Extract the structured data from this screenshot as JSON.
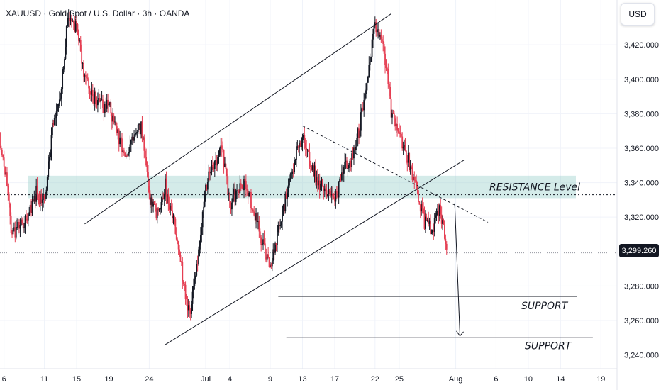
{
  "header": {
    "symbol_title": "XAUUSD · Gold Spot / U.S. Dollar · 3h · OANDA",
    "currency_button": "USD"
  },
  "chart_data": {
    "type": "candlestick",
    "symbol": "XAUUSD",
    "instrument": "Gold Spot / U.S. Dollar",
    "timeframe": "3h",
    "source": "OANDA",
    "currency": "USD",
    "last_price": "3,299.260",
    "ylim": [
      3232,
      3446
    ],
    "y_ticks": [
      {
        "v": 3420,
        "label": "3,420.000"
      },
      {
        "v": 3400,
        "label": "3,400.000"
      },
      {
        "v": 3380,
        "label": "3,380.000"
      },
      {
        "v": 3360,
        "label": "3,360.000"
      },
      {
        "v": 3340,
        "label": "3,340.000"
      },
      {
        "v": 3320,
        "label": "3,320.000"
      },
      {
        "v": 3280,
        "label": "3,280.000"
      },
      {
        "v": 3260,
        "label": "3,260.000"
      },
      {
        "v": 3240,
        "label": "3,240.000"
      }
    ],
    "x_ticks": [
      {
        "label": "6",
        "date": "2025-06-06"
      },
      {
        "label": "11",
        "date": "2025-06-11"
      },
      {
        "label": "15",
        "date": "2025-06-15"
      },
      {
        "label": "19",
        "date": "2025-06-19"
      },
      {
        "label": "24",
        "date": "2025-06-24"
      },
      {
        "label": "Jul",
        "date": "2025-07-01"
      },
      {
        "label": "4",
        "date": "2025-07-04"
      },
      {
        "label": "9",
        "date": "2025-07-09"
      },
      {
        "label": "13",
        "date": "2025-07-13"
      },
      {
        "label": "17",
        "date": "2025-07-17"
      },
      {
        "label": "22",
        "date": "2025-07-22"
      },
      {
        "label": "25",
        "date": "2025-07-25"
      },
      {
        "label": "Aug",
        "date": "2025-08-01"
      },
      {
        "label": "6",
        "date": "2025-08-06"
      },
      {
        "label": "10",
        "date": "2025-08-10"
      },
      {
        "label": "14",
        "date": "2025-08-14"
      },
      {
        "label": "19",
        "date": "2025-08-19"
      }
    ],
    "path": [
      [
        "2025-06-05",
        3375
      ],
      [
        "2025-06-06",
        3352
      ],
      [
        "2025-06-07",
        3310
      ],
      [
        "2025-06-09",
        3320
      ],
      [
        "2025-06-10",
        3335
      ],
      [
        "2025-06-11",
        3328
      ],
      [
        "2025-06-12",
        3372
      ],
      [
        "2025-06-13",
        3392
      ],
      [
        "2025-06-14",
        3438
      ],
      [
        "2025-06-15",
        3430
      ],
      [
        "2025-06-16",
        3402
      ],
      [
        "2025-06-17",
        3390
      ],
      [
        "2025-06-18",
        3384
      ],
      [
        "2025-06-19",
        3386
      ],
      [
        "2025-06-20",
        3368
      ],
      [
        "2025-06-21",
        3358
      ],
      [
        "2025-06-22",
        3365
      ],
      [
        "2025-06-23",
        3372
      ],
      [
        "2025-06-24",
        3332
      ],
      [
        "2025-06-25",
        3322
      ],
      [
        "2025-06-26",
        3338
      ],
      [
        "2025-06-27",
        3318
      ],
      [
        "2025-06-28",
        3290
      ],
      [
        "2025-06-29",
        3262
      ],
      [
        "2025-06-30",
        3295
      ],
      [
        "2025-07-01",
        3338
      ],
      [
        "2025-07-02",
        3350
      ],
      [
        "2025-07-03",
        3360
      ],
      [
        "2025-07-04",
        3328
      ],
      [
        "2025-07-05",
        3336
      ],
      [
        "2025-07-06",
        3338
      ],
      [
        "2025-07-07",
        3322
      ],
      [
        "2025-07-08",
        3306
      ],
      [
        "2025-07-09",
        3290
      ],
      [
        "2025-07-10",
        3314
      ],
      [
        "2025-07-11",
        3332
      ],
      [
        "2025-07-12",
        3352
      ],
      [
        "2025-07-13",
        3368
      ],
      [
        "2025-07-14",
        3352
      ],
      [
        "2025-07-15",
        3340
      ],
      [
        "2025-07-16",
        3334
      ],
      [
        "2025-07-17",
        3328
      ],
      [
        "2025-07-18",
        3348
      ],
      [
        "2025-07-19",
        3352
      ],
      [
        "2025-07-20",
        3370
      ],
      [
        "2025-07-21",
        3398
      ],
      [
        "2025-07-22",
        3432
      ],
      [
        "2025-07-23",
        3422
      ],
      [
        "2025-07-24",
        3382
      ],
      [
        "2025-07-25",
        3368
      ],
      [
        "2025-07-26",
        3355
      ],
      [
        "2025-07-27",
        3340
      ],
      [
        "2025-07-28",
        3318
      ],
      [
        "2025-07-29",
        3312
      ],
      [
        "2025-07-30",
        3326
      ],
      [
        "2025-07-31",
        3299.26
      ]
    ],
    "annotations": {
      "resistance_zone": {
        "from": 3331,
        "to": 3344,
        "label": "RESISTANCE Level"
      },
      "resistance_line": 3333,
      "supports": [
        {
          "price": 3274,
          "label": "SUPPORT"
        },
        {
          "price": 3250,
          "label": "SUPPORT"
        }
      ],
      "ascending_channel": {
        "lower": [
          [
            "2025-06-26",
            3246
          ],
          [
            "2025-08-02",
            3353
          ]
        ],
        "upper": [
          [
            "2025-06-16",
            3316
          ],
          [
            "2025-07-24",
            3438
          ]
        ]
      },
      "descending_trendline": [
        [
          "2025-07-13",
          3373
        ],
        [
          "2025-08-05",
          3317
        ]
      ],
      "projection_arrow": [
        [
          "2025-07-31",
          3328
        ],
        [
          "2025-08-01",
          3251
        ]
      ]
    },
    "colors": {
      "up": "#131722",
      "down": "#e53e52",
      "zone": "#9fd3cf",
      "drawing": "#131722",
      "grid": "#f0f3fa"
    }
  }
}
